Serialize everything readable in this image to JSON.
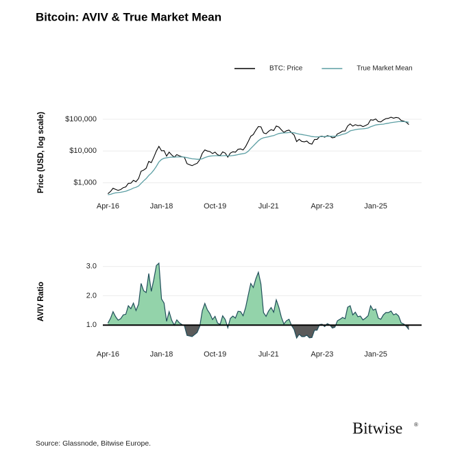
{
  "title": "Bitcoin: AVIV & True Market Mean",
  "source": "Source: Glassnode, Bitwise Europe.",
  "logo": "Bitwise",
  "logo_mark": "®",
  "chart_data": [
    {
      "type": "line",
      "scale": "log",
      "y_label": "Price (USD, log scale)",
      "grid": true,
      "legend": "top-right",
      "x": [
        "2016-04",
        "2016-05",
        "2016-06",
        "2016-07",
        "2016-08",
        "2016-09",
        "2016-10",
        "2016-11",
        "2016-12",
        "2017-01",
        "2017-02",
        "2017-03",
        "2017-04",
        "2017-05",
        "2017-06",
        "2017-07",
        "2017-08",
        "2017-09",
        "2017-10",
        "2017-11",
        "2017-12",
        "2018-01",
        "2018-02",
        "2018-03",
        "2018-04",
        "2018-05",
        "2018-06",
        "2018-07",
        "2018-08",
        "2018-09",
        "2018-10",
        "2018-11",
        "2018-12",
        "2019-01",
        "2019-02",
        "2019-03",
        "2019-04",
        "2019-05",
        "2019-06",
        "2019-07",
        "2019-08",
        "2019-09",
        "2019-10",
        "2019-11",
        "2019-12",
        "2020-01",
        "2020-02",
        "2020-03",
        "2020-04",
        "2020-05",
        "2020-06",
        "2020-07",
        "2020-08",
        "2020-09",
        "2020-10",
        "2020-11",
        "2020-12",
        "2021-01",
        "2021-02",
        "2021-03",
        "2021-04",
        "2021-05",
        "2021-06",
        "2021-07",
        "2021-08",
        "2021-09",
        "2021-10",
        "2021-11",
        "2021-12",
        "2022-01",
        "2022-02",
        "2022-03",
        "2022-04",
        "2022-05",
        "2022-06",
        "2022-07",
        "2022-08",
        "2022-09",
        "2022-10",
        "2022-11",
        "2022-12",
        "2023-01",
        "2023-02",
        "2023-03",
        "2023-04",
        "2023-05",
        "2023-06",
        "2023-07",
        "2023-08",
        "2023-09",
        "2023-10",
        "2023-11",
        "2023-12",
        "2024-01",
        "2024-02",
        "2024-03",
        "2024-04",
        "2024-05",
        "2024-06",
        "2024-07",
        "2024-08",
        "2024-09",
        "2024-10",
        "2024-11",
        "2024-12",
        "2025-01",
        "2025-02",
        "2025-03",
        "2025-04",
        "2025-05",
        "2025-06",
        "2025-07",
        "2025-08",
        "2025-09",
        "2025-10",
        "2025-11",
        "2025-12",
        "2026-01",
        "2026-02"
      ],
      "series": [
        {
          "name": "BTC: Price",
          "color": "#000000",
          "values": [
            450,
            530,
            670,
            620,
            575,
            610,
            700,
            740,
            960,
            970,
            1190,
            1080,
            1350,
            2300,
            2500,
            2850,
            4700,
            4300,
            6400,
            10000,
            14000,
            10200,
            10300,
            6900,
            9200,
            7500,
            6400,
            7700,
            7000,
            6600,
            6300,
            4000,
            3700,
            3450,
            3800,
            4100,
            5300,
            8500,
            10800,
            10000,
            9600,
            8300,
            9200,
            7600,
            7200,
            9350,
            8600,
            6400,
            8600,
            9450,
            9150,
            11300,
            11650,
            10800,
            13800,
            19700,
            29000,
            33100,
            45200,
            58800,
            57700,
            37300,
            35000,
            41500,
            47100,
            43800,
            61300,
            57000,
            46300,
            38500,
            43200,
            45500,
            37700,
            31800,
            19800,
            23300,
            20000,
            19400,
            20500,
            17200,
            16500,
            23100,
            23100,
            28500,
            29300,
            27200,
            30500,
            29200,
            26000,
            27000,
            34500,
            37700,
            42300,
            42600,
            61200,
            71300,
            60700,
            67500,
            62700,
            64600,
            59000,
            63300,
            70200,
            96400,
            93400,
            102400,
            84400,
            82500,
            94200,
            104600,
            107100,
            115800,
            108200,
            114000,
            110000,
            91000,
            87000,
            80000,
            68000
          ]
        },
        {
          "name": "True Market Mean",
          "color": "#5b9ea3",
          "values": [
            420,
            430,
            460,
            480,
            490,
            500,
            520,
            540,
            580,
            620,
            680,
            720,
            790,
            950,
            1150,
            1350,
            1700,
            2000,
            2500,
            3300,
            4500,
            5400,
            5900,
            6100,
            6300,
            6400,
            6400,
            6500,
            6500,
            6500,
            6400,
            6200,
            5900,
            5700,
            5600,
            5500,
            5500,
            5700,
            6200,
            6600,
            6900,
            7000,
            7100,
            7100,
            7000,
            7100,
            7200,
            7000,
            7000,
            7200,
            7400,
            7700,
            8000,
            8200,
            8600,
            9800,
            12000,
            14500,
            17500,
            21000,
            24000,
            26000,
            27000,
            28000,
            29500,
            30500,
            33000,
            35500,
            36500,
            37000,
            37500,
            38000,
            38000,
            37500,
            35500,
            34000,
            33000,
            32000,
            31000,
            30000,
            28500,
            28000,
            27800,
            28000,
            28500,
            28500,
            29000,
            29000,
            29000,
            29000,
            30000,
            31500,
            33500,
            35000,
            38000,
            43000,
            45000,
            47000,
            48500,
            49500,
            50000,
            51000,
            53000,
            58000,
            62000,
            66000,
            68000,
            69000,
            70000,
            73000,
            75000,
            78000,
            80000,
            82000,
            84000,
            84000,
            84000,
            83000,
            80000
          ]
        }
      ],
      "xlim": [
        "2016-02",
        "2026-07"
      ],
      "xticks": [
        {
          "value": "2016-04",
          "label": "Apr-16"
        },
        {
          "value": "2018-01",
          "label": "Jan-18"
        },
        {
          "value": "2019-10",
          "label": "Oct-19"
        },
        {
          "value": "2021-07",
          "label": "Jul-21"
        },
        {
          "value": "2023-04",
          "label": "Apr-23"
        },
        {
          "value": "2025-01",
          "label": "Jan-25"
        }
      ],
      "ylim": [
        400,
        200000
      ],
      "yticks": [
        {
          "value": 1000,
          "label": "$1,000"
        },
        {
          "value": 10000,
          "label": "$10,000"
        },
        {
          "value": 100000,
          "label": "$100,000"
        }
      ]
    },
    {
      "type": "area",
      "y_label": "AVIV Ratio",
      "grid": true,
      "baseline": 1,
      "color": "#1f4e5a",
      "fill_above": "#93d3aa",
      "fill_below": "#5a5a5a",
      "x": [
        "2016-04",
        "2016-05",
        "2016-06",
        "2016-07",
        "2016-08",
        "2016-09",
        "2016-10",
        "2016-11",
        "2016-12",
        "2017-01",
        "2017-02",
        "2017-03",
        "2017-04",
        "2017-05",
        "2017-06",
        "2017-07",
        "2017-08",
        "2017-09",
        "2017-10",
        "2017-11",
        "2017-12",
        "2018-01",
        "2018-02",
        "2018-03",
        "2018-04",
        "2018-05",
        "2018-06",
        "2018-07",
        "2018-08",
        "2018-09",
        "2018-10",
        "2018-11",
        "2018-12",
        "2019-01",
        "2019-02",
        "2019-03",
        "2019-04",
        "2019-05",
        "2019-06",
        "2019-07",
        "2019-08",
        "2019-09",
        "2019-10",
        "2019-11",
        "2019-12",
        "2020-01",
        "2020-02",
        "2020-03",
        "2020-04",
        "2020-05",
        "2020-06",
        "2020-07",
        "2020-08",
        "2020-09",
        "2020-10",
        "2020-11",
        "2020-12",
        "2021-01",
        "2021-02",
        "2021-03",
        "2021-04",
        "2021-05",
        "2021-06",
        "2021-07",
        "2021-08",
        "2021-09",
        "2021-10",
        "2021-11",
        "2021-12",
        "2022-01",
        "2022-02",
        "2022-03",
        "2022-04",
        "2022-05",
        "2022-06",
        "2022-07",
        "2022-08",
        "2022-09",
        "2022-10",
        "2022-11",
        "2022-12",
        "2023-01",
        "2023-02",
        "2023-03",
        "2023-04",
        "2023-05",
        "2023-06",
        "2023-07",
        "2023-08",
        "2023-09",
        "2023-10",
        "2023-11",
        "2023-12",
        "2024-01",
        "2024-02",
        "2024-03",
        "2024-04",
        "2024-05",
        "2024-06",
        "2024-07",
        "2024-08",
        "2024-09",
        "2024-10",
        "2024-11",
        "2024-12",
        "2025-01",
        "2025-02",
        "2025-03",
        "2025-04",
        "2025-05",
        "2025-06",
        "2025-07",
        "2025-08",
        "2025-09",
        "2025-10",
        "2025-11",
        "2025-12",
        "2026-01",
        "2026-02"
      ],
      "values": [
        1.07,
        1.23,
        1.46,
        1.29,
        1.17,
        1.22,
        1.35,
        1.37,
        1.66,
        1.56,
        1.75,
        1.5,
        1.71,
        2.42,
        2.17,
        2.11,
        2.76,
        2.15,
        2.56,
        3.03,
        3.11,
        1.89,
        1.75,
        1.13,
        1.46,
        1.17,
        1.0,
        1.18,
        1.08,
        1.02,
        0.98,
        0.65,
        0.63,
        0.61,
        0.68,
        0.75,
        0.96,
        1.49,
        1.74,
        1.52,
        1.39,
        1.19,
        1.3,
        1.07,
        1.03,
        1.32,
        1.19,
        0.91,
        1.23,
        1.31,
        1.24,
        1.47,
        1.46,
        1.32,
        1.6,
        2.01,
        2.42,
        2.28,
        2.58,
        2.8,
        2.4,
        1.43,
        1.3,
        1.48,
        1.6,
        1.44,
        1.86,
        1.61,
        1.27,
        1.04,
        1.15,
        1.2,
        0.99,
        0.85,
        0.56,
        0.69,
        0.61,
        0.61,
        0.66,
        0.57,
        0.58,
        0.83,
        0.83,
        1.02,
        1.03,
        0.95,
        1.05,
        1.01,
        0.9,
        0.93,
        1.15,
        1.2,
        1.26,
        1.22,
        1.61,
        1.66,
        1.35,
        1.44,
        1.29,
        1.31,
        1.18,
        1.24,
        1.32,
        1.66,
        1.51,
        1.55,
        1.24,
        1.2,
        1.35,
        1.43,
        1.43,
        1.48,
        1.35,
        1.39,
        1.31,
        1.08,
        1.04,
        0.96,
        0.85
      ],
      "xlim": [
        "2016-02",
        "2026-07"
      ],
      "xticks": [
        {
          "value": "2016-04",
          "label": "Apr-16"
        },
        {
          "value": "2018-01",
          "label": "Jan-18"
        },
        {
          "value": "2019-10",
          "label": "Oct-19"
        },
        {
          "value": "2021-07",
          "label": "Jul-21"
        },
        {
          "value": "2023-04",
          "label": "Apr-23"
        },
        {
          "value": "2025-01",
          "label": "Jan-25"
        }
      ],
      "ylim": [
        0.4,
        3.2
      ],
      "yticks": [
        {
          "value": 1,
          "label": "1.0"
        },
        {
          "value": 2,
          "label": "2.0"
        },
        {
          "value": 3,
          "label": "3.0"
        }
      ]
    }
  ]
}
